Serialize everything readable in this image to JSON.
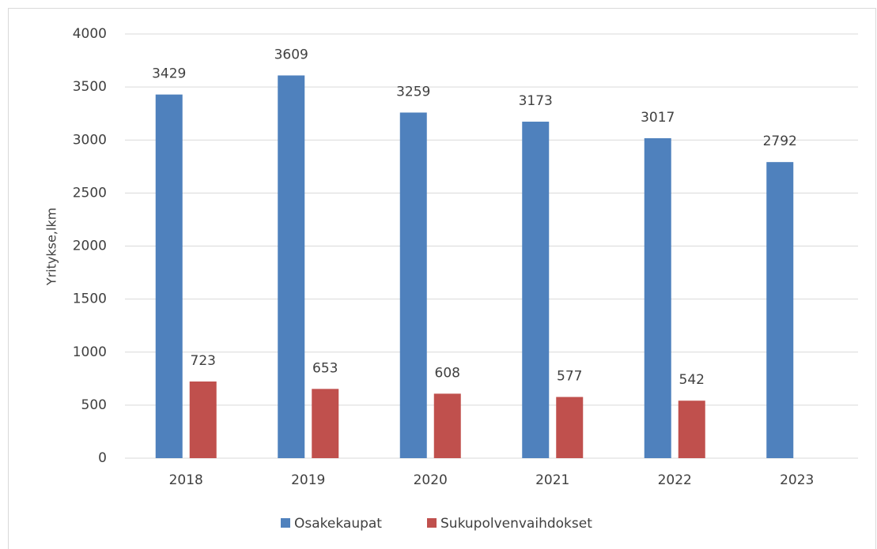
{
  "chart_data": {
    "type": "bar",
    "y_label": "Yritykse,lkm",
    "categories": [
      "2018",
      "2019",
      "2020",
      "2021",
      "2022",
      "2023"
    ],
    "series": [
      {
        "name": "Osakekaupat",
        "color": "#4f81bd",
        "values": [
          3429,
          3609,
          3259,
          3173,
          3017,
          2792
        ]
      },
      {
        "name": "Sukupolvenvaihdokset",
        "color": "#c0504d",
        "values": [
          723,
          653,
          608,
          577,
          542,
          null
        ]
      }
    ],
    "ylim": [
      0,
      4000
    ],
    "yticks": [
      0,
      500,
      1000,
      1500,
      2000,
      2500,
      3000,
      3500,
      4000
    ],
    "grid": true,
    "legend": "bottom"
  }
}
